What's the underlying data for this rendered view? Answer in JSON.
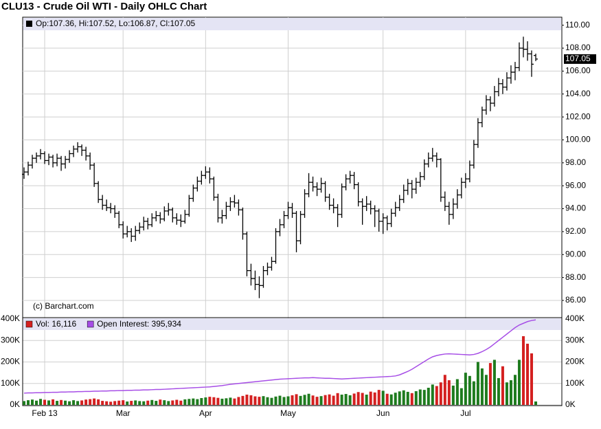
{
  "chart_data": [
    {
      "type": "ohlc",
      "title": "CLU13 - Crude Oil WTI - Daily OHLC Chart",
      "legend_text": "Op:107.36, Hi:107.52, Lo:106.87, Cl:107.05",
      "source": "(c) Barchart.com",
      "color": "#000000",
      "ylim": [
        84.5,
        110.7
      ],
      "yticks": [
        {
          "value": 86,
          "label": "86.00"
        },
        {
          "value": 88,
          "label": "88.00"
        },
        {
          "value": 90,
          "label": "90.00"
        },
        {
          "value": 92,
          "label": "92.00"
        },
        {
          "value": 94,
          "label": "94.00"
        },
        {
          "value": 96,
          "label": "96.00"
        },
        {
          "value": 98,
          "label": "98.00"
        },
        {
          "value": 100,
          "label": "100.00"
        },
        {
          "value": 102,
          "label": "102.00"
        },
        {
          "value": 104,
          "label": "104.00"
        },
        {
          "value": 106,
          "label": "106.00"
        },
        {
          "value": 108,
          "label": "108.00"
        },
        {
          "value": 110,
          "label": "110.00"
        }
      ],
      "grid": true,
      "ohlc": [
        [
          97.0,
          97.6,
          96.6,
          97.2
        ],
        [
          97.2,
          98.1,
          96.9,
          97.8
        ],
        [
          97.8,
          98.7,
          97.5,
          98.4
        ],
        [
          98.4,
          98.9,
          98.0,
          98.6
        ],
        [
          98.6,
          99.2,
          98.3,
          98.8
        ],
        [
          98.8,
          99.0,
          97.9,
          98.2
        ],
        [
          98.2,
          98.8,
          97.8,
          98.5
        ],
        [
          98.5,
          98.7,
          97.6,
          98.0
        ],
        [
          98.0,
          98.8,
          97.7,
          98.4
        ],
        [
          98.4,
          98.6,
          97.3,
          97.9
        ],
        [
          97.9,
          98.6,
          97.5,
          98.3
        ],
        [
          98.3,
          99.1,
          98.0,
          98.8
        ],
        [
          98.8,
          99.5,
          98.5,
          99.2
        ],
        [
          99.2,
          99.8,
          98.9,
          99.4
        ],
        [
          99.4,
          99.6,
          98.6,
          99.1
        ],
        [
          99.1,
          99.4,
          98.2,
          98.6
        ],
        [
          98.6,
          98.9,
          97.4,
          97.8
        ],
        [
          97.8,
          98.0,
          95.9,
          96.2
        ],
        [
          96.2,
          96.4,
          94.5,
          94.8
        ],
        [
          94.8,
          95.2,
          93.9,
          94.3
        ],
        [
          94.3,
          94.8,
          93.8,
          94.1
        ],
        [
          94.1,
          94.5,
          93.6,
          94.0
        ],
        [
          94.0,
          94.3,
          93.2,
          93.6
        ],
        [
          93.6,
          93.8,
          92.3,
          92.6
        ],
        [
          92.6,
          92.9,
          91.4,
          91.8
        ],
        [
          91.8,
          92.5,
          91.5,
          92.0
        ],
        [
          92.0,
          92.3,
          91.1,
          91.6
        ],
        [
          91.6,
          92.5,
          91.2,
          92.1
        ],
        [
          92.1,
          92.8,
          91.8,
          92.4
        ],
        [
          92.4,
          93.3,
          92.1,
          92.9
        ],
        [
          92.9,
          93.2,
          92.2,
          92.6
        ],
        [
          92.6,
          93.6,
          92.4,
          93.2
        ],
        [
          93.2,
          93.8,
          92.9,
          93.4
        ],
        [
          93.4,
          93.7,
          92.7,
          93.1
        ],
        [
          93.1,
          94.2,
          92.9,
          93.8
        ],
        [
          93.8,
          94.5,
          93.4,
          93.9
        ],
        [
          93.9,
          94.1,
          92.8,
          93.2
        ],
        [
          93.2,
          93.6,
          92.6,
          93.0
        ],
        [
          93.0,
          93.5,
          92.4,
          92.9
        ],
        [
          92.9,
          93.9,
          92.7,
          93.5
        ],
        [
          93.5,
          95.2,
          93.3,
          94.9
        ],
        [
          94.9,
          96.1,
          94.6,
          95.8
        ],
        [
          95.8,
          96.8,
          95.5,
          96.4
        ],
        [
          96.4,
          97.3,
          96.1,
          96.9
        ],
        [
          96.9,
          97.7,
          96.6,
          97.2
        ],
        [
          97.2,
          97.6,
          96.2,
          96.6
        ],
        [
          96.6,
          96.8,
          94.7,
          95.0
        ],
        [
          95.0,
          95.3,
          92.8,
          93.2
        ],
        [
          93.2,
          93.9,
          92.7,
          93.4
        ],
        [
          93.4,
          94.6,
          93.1,
          94.2
        ],
        [
          94.2,
          95.0,
          93.8,
          94.6
        ],
        [
          94.6,
          95.2,
          94.1,
          94.5
        ],
        [
          94.5,
          94.8,
          93.4,
          93.9
        ],
        [
          93.9,
          94.1,
          91.3,
          91.8
        ],
        [
          91.8,
          92.0,
          88.1,
          88.6
        ],
        [
          88.6,
          89.2,
          87.3,
          87.9
        ],
        [
          87.9,
          88.6,
          86.9,
          87.4
        ],
        [
          87.4,
          88.1,
          86.2,
          87.3
        ],
        [
          87.3,
          89.0,
          87.1,
          88.6
        ],
        [
          88.6,
          89.3,
          88.2,
          88.9
        ],
        [
          88.9,
          89.8,
          88.6,
          89.4
        ],
        [
          89.4,
          92.3,
          89.2,
          92.0
        ],
        [
          92.0,
          93.1,
          91.6,
          92.6
        ],
        [
          92.6,
          93.8,
          92.3,
          93.4
        ],
        [
          93.4,
          94.6,
          93.1,
          94.1
        ],
        [
          94.1,
          94.5,
          93.2,
          93.6
        ],
        [
          93.6,
          93.8,
          90.2,
          91.2
        ],
        [
          91.2,
          93.8,
          90.9,
          93.5
        ],
        [
          93.5,
          95.7,
          93.2,
          95.3
        ],
        [
          95.3,
          97.1,
          95.0,
          96.3
        ],
        [
          96.3,
          96.8,
          95.5,
          95.9
        ],
        [
          95.9,
          96.3,
          95.1,
          95.7
        ],
        [
          95.7,
          96.7,
          95.4,
          96.2
        ],
        [
          96.2,
          96.4,
          94.6,
          95.0
        ],
        [
          95.0,
          95.3,
          93.9,
          94.3
        ],
        [
          94.3,
          94.9,
          93.6,
          94.1
        ],
        [
          94.1,
          94.4,
          92.4,
          93.5
        ],
        [
          93.5,
          96.2,
          93.2,
          95.9
        ],
        [
          95.9,
          97.0,
          95.6,
          96.6
        ],
        [
          96.6,
          97.3,
          96.2,
          96.9
        ],
        [
          96.9,
          97.2,
          95.7,
          96.1
        ],
        [
          96.1,
          96.3,
          94.2,
          94.6
        ],
        [
          94.6,
          94.9,
          92.6,
          94.2
        ],
        [
          94.2,
          95.1,
          93.8,
          94.4
        ],
        [
          94.4,
          94.7,
          93.5,
          94.0
        ],
        [
          94.0,
          94.3,
          92.4,
          93.8
        ],
        [
          93.8,
          94.0,
          92.0,
          92.9
        ],
        [
          92.9,
          93.6,
          91.8,
          93.2
        ],
        [
          93.2,
          93.4,
          92.1,
          92.7
        ],
        [
          92.7,
          94.0,
          92.4,
          93.6
        ],
        [
          93.6,
          94.6,
          93.3,
          94.1
        ],
        [
          94.1,
          95.2,
          93.8,
          94.8
        ],
        [
          94.8,
          96.1,
          94.5,
          95.6
        ],
        [
          95.6,
          96.6,
          95.2,
          96.2
        ],
        [
          96.2,
          96.5,
          94.9,
          95.7
        ],
        [
          95.7,
          96.7,
          95.3,
          96.3
        ],
        [
          96.3,
          97.2,
          95.9,
          96.8
        ],
        [
          96.8,
          98.3,
          96.5,
          97.9
        ],
        [
          97.9,
          98.9,
          97.6,
          98.4
        ],
        [
          98.4,
          99.3,
          98.1,
          98.6
        ],
        [
          98.6,
          98.9,
          97.6,
          98.3
        ],
        [
          98.3,
          98.4,
          94.6,
          95.0
        ],
        [
          95.0,
          95.5,
          93.8,
          94.2
        ],
        [
          94.2,
          94.6,
          92.6,
          93.5
        ],
        [
          93.5,
          94.9,
          93.1,
          94.4
        ],
        [
          94.4,
          95.7,
          94.0,
          95.2
        ],
        [
          95.2,
          96.7,
          94.9,
          96.3
        ],
        [
          96.3,
          97.1,
          95.8,
          96.6
        ],
        [
          96.6,
          98.2,
          96.3,
          97.8
        ],
        [
          97.8,
          100.0,
          97.5,
          99.6
        ],
        [
          99.6,
          101.9,
          99.3,
          101.5
        ],
        [
          101.5,
          102.9,
          101.1,
          102.6
        ],
        [
          102.6,
          103.9,
          102.2,
          103.5
        ],
        [
          103.5,
          103.8,
          102.5,
          103.2
        ],
        [
          103.2,
          104.7,
          102.9,
          104.2
        ],
        [
          104.2,
          105.4,
          103.8,
          104.9
        ],
        [
          104.9,
          105.3,
          104.0,
          104.6
        ],
        [
          104.6,
          105.9,
          104.3,
          105.4
        ],
        [
          105.4,
          106.5,
          104.9,
          105.9
        ],
        [
          105.9,
          106.8,
          105.2,
          106.3
        ],
        [
          106.3,
          108.5,
          106.0,
          108.0
        ],
        [
          108.0,
          109.0,
          107.2,
          107.9
        ],
        [
          107.9,
          108.6,
          106.9,
          107.5
        ],
        [
          107.5,
          107.8,
          105.5,
          106.6
        ],
        [
          107.36,
          107.52,
          106.87,
          107.05
        ]
      ]
    },
    {
      "type": "bar",
      "up_color": "#1e7b1e",
      "grid": true,
      "ylim": [
        0,
        400000
      ],
      "yticks": [
        {
          "value": 0,
          "label": "0K"
        },
        {
          "value": 100000,
          "label": "100K"
        },
        {
          "value": 200000,
          "label": "200K"
        },
        {
          "value": 300000,
          "label": "300K"
        },
        {
          "value": 400000,
          "label": "400K"
        }
      ],
      "categories": [
        null,
        null,
        null,
        null,
        null,
        "Feb 13",
        null,
        null,
        null,
        null,
        null,
        null,
        null,
        null,
        null,
        null,
        null,
        null,
        null,
        null,
        null,
        null,
        null,
        null,
        "Mar",
        null,
        null,
        null,
        null,
        null,
        null,
        null,
        null,
        null,
        null,
        null,
        null,
        null,
        null,
        null,
        null,
        null,
        null,
        null,
        "Apr",
        null,
        null,
        null,
        null,
        null,
        null,
        null,
        null,
        null,
        null,
        null,
        null,
        null,
        null,
        null,
        null,
        null,
        null,
        null,
        "May",
        null,
        null,
        null,
        null,
        null,
        null,
        null,
        null,
        null,
        null,
        null,
        null,
        null,
        null,
        null,
        null,
        null,
        null,
        null,
        null,
        null,
        null,
        "Jun",
        null,
        null,
        null,
        null,
        null,
        null,
        null,
        null,
        null,
        null,
        null,
        null,
        null,
        null,
        null,
        null,
        null,
        null,
        null,
        "Jul",
        null,
        null,
        null,
        null,
        null,
        null,
        null,
        null,
        null,
        null,
        null,
        null,
        null,
        null,
        null,
        null,
        null
      ],
      "series": [
        {
          "name": "Vol: 16,116",
          "color": "#d42020",
          "values": [
            18000,
            22000,
            25000,
            20000,
            28000,
            24000,
            21000,
            26000,
            19000,
            23000,
            20000,
            17000,
            22000,
            18000,
            21000,
            25000,
            27000,
            30000,
            26000,
            19000,
            17000,
            15000,
            18000,
            20000,
            22000,
            16000,
            19000,
            21000,
            18000,
            17000,
            20000,
            23000,
            19000,
            25000,
            22000,
            18000,
            21000,
            24000,
            20000,
            26000,
            28000,
            30000,
            27000,
            32000,
            35000,
            38000,
            36000,
            33000,
            29000,
            31000,
            34000,
            30000,
            37000,
            42000,
            48000,
            45000,
            40000,
            38000,
            41000,
            36000,
            33000,
            39000,
            43000,
            37000,
            40000,
            45000,
            50000,
            42000,
            47000,
            52000,
            44000,
            38000,
            41000,
            46000,
            49000,
            43000,
            55000,
            48000,
            51000,
            45000,
            53000,
            60000,
            56000,
            48000,
            62000,
            58000,
            70000,
            66000,
            52000,
            49000,
            57000,
            63000,
            68000,
            61000,
            55000,
            64000,
            72000,
            70000,
            80000,
            95000,
            88000,
            105000,
            140000,
            115000,
            90000,
            120000,
            78000,
            150000,
            135000,
            110000,
            200000,
            170000,
            140000,
            195000,
            210000,
            125000,
            180000,
            105000,
            115000,
            140000,
            210000,
            320000,
            285000,
            240000,
            16116
          ]
        },
        {
          "name": "Open Interest: 395,934",
          "type": "line",
          "color": "#a64de6",
          "values": [
            55000,
            56000,
            56000,
            57000,
            57000,
            58000,
            58000,
            59000,
            59000,
            60000,
            60000,
            61000,
            61000,
            62000,
            62000,
            63000,
            63000,
            64000,
            64000,
            65000,
            65000,
            66000,
            66000,
            67000,
            67000,
            68000,
            68000,
            69000,
            69000,
            70000,
            70000,
            71000,
            72000,
            72000,
            73000,
            74000,
            75000,
            76000,
            77000,
            78000,
            79000,
            80000,
            81000,
            82000,
            83000,
            84000,
            86000,
            88000,
            90000,
            93000,
            96000,
            98000,
            100000,
            102000,
            104000,
            106000,
            108000,
            110000,
            112000,
            114000,
            116000,
            118000,
            120000,
            121000,
            122000,
            123000,
            124000,
            125000,
            126000,
            126000,
            127000,
            126000,
            125000,
            124000,
            124000,
            123000,
            122000,
            121000,
            122000,
            123000,
            124000,
            125000,
            126000,
            127000,
            128000,
            129000,
            130000,
            131000,
            132000,
            133000,
            135000,
            140000,
            148000,
            156000,
            166000,
            178000,
            190000,
            202000,
            214000,
            224000,
            230000,
            234000,
            237000,
            238000,
            237000,
            236000,
            235000,
            234000,
            233000,
            235000,
            240000,
            248000,
            258000,
            270000,
            285000,
            300000,
            315000,
            330000,
            345000,
            360000,
            372000,
            380000,
            388000,
            393000,
            395934
          ]
        }
      ]
    }
  ]
}
